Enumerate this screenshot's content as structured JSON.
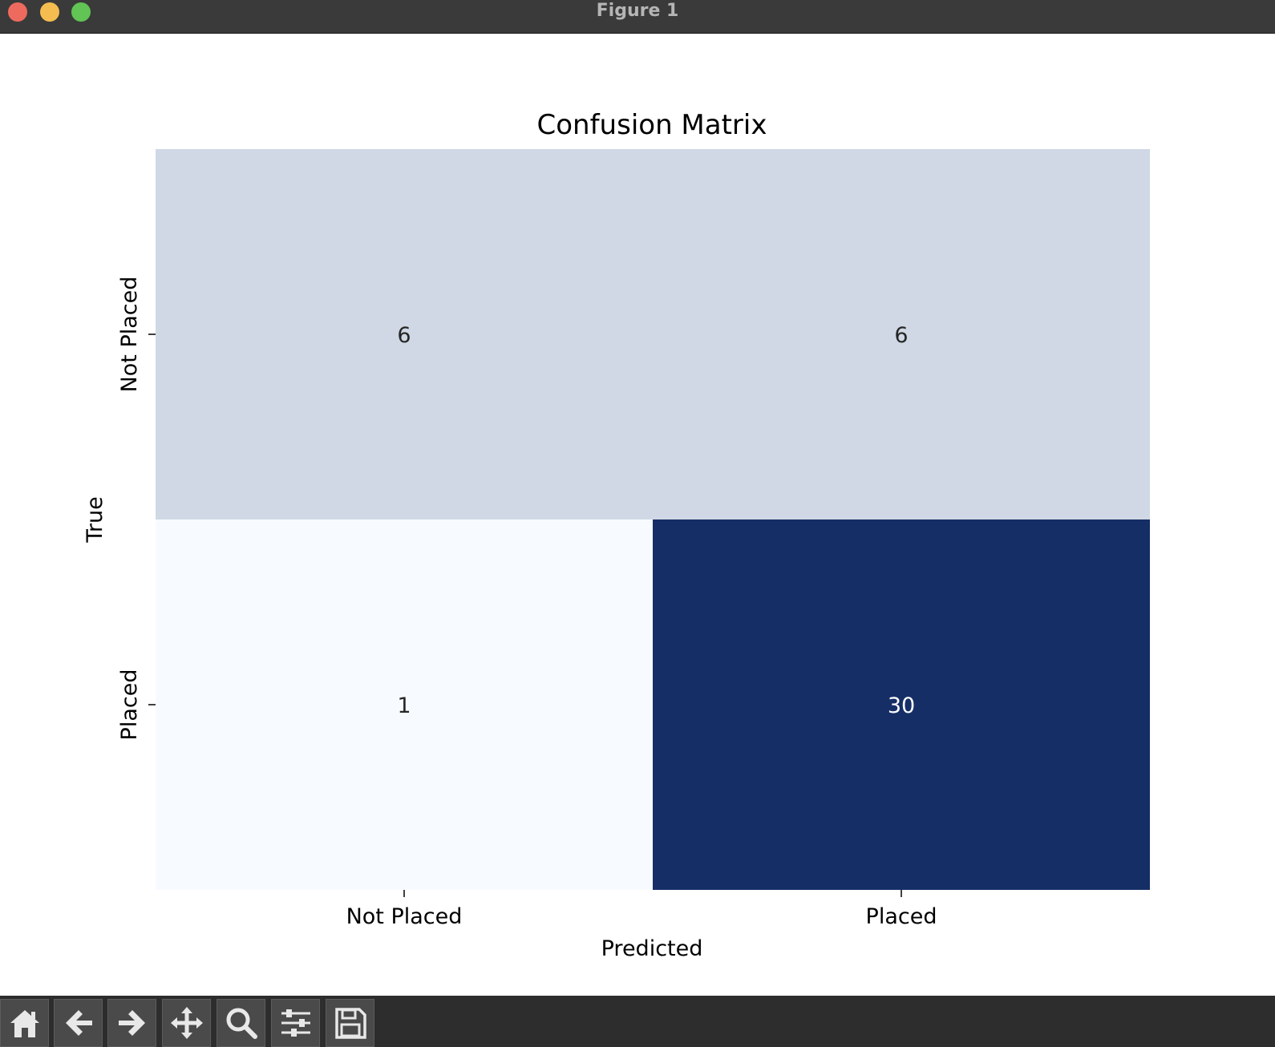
{
  "window": {
    "title": "Figure 1"
  },
  "toolbar": {
    "buttons": [
      {
        "name": "home-button",
        "icon": "home-icon"
      },
      {
        "name": "back-button",
        "icon": "arrow-left-icon"
      },
      {
        "name": "forward-button",
        "icon": "arrow-right-icon"
      },
      {
        "name": "pan-button",
        "icon": "move-icon"
      },
      {
        "name": "zoom-button",
        "icon": "magnifier-icon"
      },
      {
        "name": "configure-subplots-button",
        "icon": "sliders-icon"
      },
      {
        "name": "save-button",
        "icon": "floppy-disk-icon"
      }
    ]
  },
  "chart_data": {
    "type": "heatmap",
    "title": "Confusion Matrix",
    "xlabel": "Predicted",
    "ylabel": "True",
    "x_categories": [
      "Not Placed",
      "Placed"
    ],
    "y_categories": [
      "Not Placed",
      "Placed"
    ],
    "values": [
      [
        6,
        6
      ],
      [
        1,
        30
      ]
    ],
    "colormap": "Blues",
    "color_low": "#f7fbff",
    "color_high": "#152e66",
    "colorbar": false,
    "grid": false
  }
}
